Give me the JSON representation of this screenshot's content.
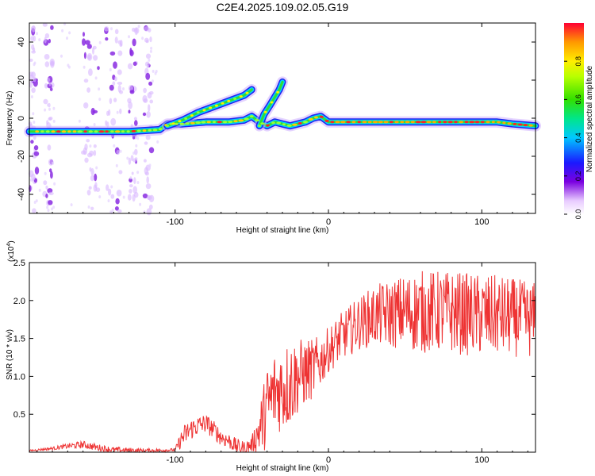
{
  "title": "C2E4.2025.109.02.05.G19",
  "chart_data": [
    {
      "type": "heatmap",
      "xlabel": "Height of straight line (km)",
      "ylabel": "Frequency (Hz)",
      "xlim": [
        -195,
        135
      ],
      "ylim": [
        -50,
        50
      ],
      "xticks": [
        -100,
        0,
        100
      ],
      "yticks": [
        -40,
        -20,
        0,
        20,
        40
      ],
      "colorbar": {
        "label": "Normalized spectral amplitude",
        "range": [
          0,
          1
        ],
        "ticks": [
          0.0,
          0.2,
          0.4,
          0.6,
          0.8
        ]
      },
      "main_trace": {
        "x": [
          -195,
          -160,
          -130,
          -110,
          -105,
          -95,
          -80,
          -65,
          -55,
          -50,
          -45,
          -40,
          -35,
          -30,
          -25,
          -20,
          -15,
          -10,
          -5,
          0,
          10,
          30,
          60,
          90,
          110,
          120,
          135
        ],
        "y": [
          -7,
          -7,
          -7,
          -6,
          -3,
          -3,
          -2,
          -2,
          -1,
          1,
          -2,
          -4,
          -2,
          -3,
          -4,
          -3,
          -2,
          0,
          1,
          -2,
          -2,
          -2,
          -2,
          -2,
          -2,
          -3,
          -4
        ]
      },
      "branch_trace": {
        "x": [
          -105,
          -95,
          -85,
          -75,
          -65,
          -55,
          -50
        ],
        "y": [
          -4,
          -1,
          3,
          6,
          9,
          12,
          15
        ]
      },
      "branch_trace_2": {
        "x": [
          -45,
          -42,
          -38,
          -35,
          -32,
          -30
        ],
        "y": [
          -4,
          2,
          7,
          11,
          15,
          19
        ]
      },
      "noise_bands_x": [
        [
          -195,
          -190
        ],
        [
          -185,
          -180
        ],
        [
          -160,
          -150
        ],
        [
          -145,
          -135
        ],
        [
          -130,
          -125
        ],
        [
          -120,
          -115
        ]
      ],
      "amplitude_levels": {
        "core": 0.9,
        "strong": 0.6,
        "mid": 0.35,
        "weak": 0.15
      }
    },
    {
      "type": "line",
      "xlabel": "Height of straight line (km)",
      "ylabel": "SNR (10 * v/v)",
      "scale_label": "(x10",
      "scale_exponent": "4",
      "xlim": [
        -195,
        135
      ],
      "ylim": [
        0,
        2.5
      ],
      "xticks": [
        -100,
        0,
        100
      ],
      "yticks": [
        0.5,
        1.0,
        1.5,
        2.0,
        2.5
      ],
      "series": [
        {
          "color": "#ee3333",
          "envelope": {
            "x": [
              -195,
              -180,
              -170,
              -160,
              -150,
              -140,
              -120,
              -100,
              -95,
              -90,
              -85,
              -80,
              -75,
              -70,
              -65,
              -60,
              -55,
              -50,
              -45,
              -40,
              -35,
              -30,
              -25,
              -20,
              -15,
              -10,
              -5,
              0,
              10,
              20,
              30,
              40,
              50,
              60,
              70,
              80,
              90,
              100,
              110,
              120,
              130,
              135
            ],
            "y": [
              0.02,
              0.05,
              0.08,
              0.1,
              0.06,
              0.03,
              0.02,
              0.03,
              0.2,
              0.3,
              0.35,
              0.38,
              0.3,
              0.2,
              0.15,
              0.08,
              0.05,
              0.1,
              0.3,
              0.6,
              0.8,
              0.85,
              0.9,
              1.0,
              1.05,
              1.1,
              1.2,
              1.35,
              1.55,
              1.7,
              1.8,
              1.82,
              1.85,
              1.85,
              1.85,
              1.85,
              1.82,
              1.8,
              1.8,
              1.78,
              1.75,
              1.75
            ]
          },
          "noise": {
            "x": [
              -195,
              -180,
              -160,
              -100,
              -95,
              -60,
              -50,
              -40,
              -25,
              -20,
              -10,
              0,
              20,
              60,
              100,
              135
            ],
            "amp": [
              0.01,
              0.02,
              0.05,
              0.02,
              0.15,
              0.1,
              0.1,
              0.55,
              0.6,
              0.5,
              0.4,
              0.3,
              0.35,
              0.55,
              0.55,
              0.5
            ]
          }
        }
      ]
    }
  ]
}
